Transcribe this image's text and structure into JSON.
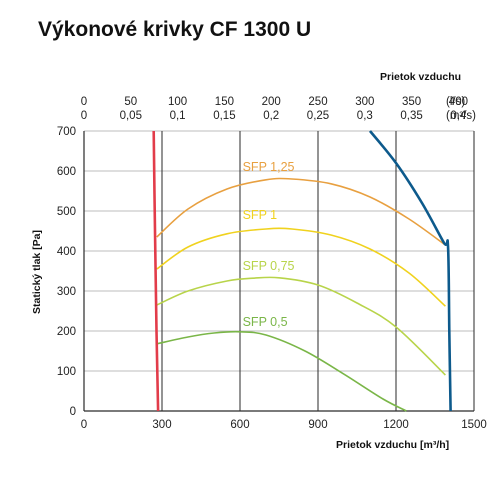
{
  "title": "Výkonové krivky CF 1300 U",
  "chart_data": {
    "type": "line",
    "title": "Výkonové krivky CF 1300 U",
    "xlabel": "Prietok vzduchu [m³/h]",
    "ylabel": "Statický tlak [Pa]",
    "x2label": "Prietok vzduchu",
    "xlim": [
      0,
      1500
    ],
    "ylim": [
      0,
      700
    ],
    "x_ticks": [
      "0",
      "300",
      "600",
      "900",
      "1200",
      "1500"
    ],
    "y_ticks": [
      "0",
      "100",
      "200",
      "300",
      "400",
      "500",
      "600",
      "700"
    ],
    "top_ticks_ls": [
      "0",
      "50",
      "100",
      "150",
      "200",
      "250",
      "300",
      "350",
      "400"
    ],
    "top_ticks_m3s": [
      "0",
      "0,05",
      "0,1",
      "0,15",
      "0,2",
      "0,25",
      "0,3",
      "0,35",
      "0,4"
    ],
    "top_unit_ls": "(l/s)",
    "top_unit_m3s": "(m³/s)",
    "grid": true,
    "series": [
      {
        "name": "SFP 1,25",
        "color": "#e8a040",
        "x": [
          280,
          400,
          550,
          700,
          800,
          950,
          1100,
          1250,
          1390
        ],
        "y": [
          435,
          505,
          555,
          578,
          580,
          568,
          535,
          480,
          415
        ]
      },
      {
        "name": "SFP 1",
        "color": "#f0d21e",
        "x": [
          280,
          400,
          550,
          700,
          800,
          950,
          1100,
          1250,
          1390
        ],
        "y": [
          355,
          410,
          443,
          455,
          455,
          440,
          405,
          345,
          262
        ]
      },
      {
        "name": "SFP 0,75",
        "color": "#b8d44a",
        "x": [
          280,
          400,
          550,
          650,
          750,
          900,
          1050,
          1200,
          1390
        ],
        "y": [
          265,
          300,
          325,
          332,
          333,
          315,
          270,
          210,
          90
        ]
      },
      {
        "name": "SFP 0,5",
        "color": "#7ab648",
        "x": [
          280,
          400,
          500,
          600,
          700,
          850,
          1000,
          1150,
          1240
        ],
        "y": [
          168,
          185,
          195,
          198,
          190,
          150,
          92,
          30,
          0
        ]
      },
      {
        "name": "",
        "color": "#0d5a8c",
        "x": [
          1100,
          1200,
          1300,
          1385,
          1400,
          1405,
          1410
        ],
        "y": [
          700,
          620,
          520,
          420,
          412,
          200,
          0
        ]
      },
      {
        "name": "",
        "color": "#e23c4a",
        "x": [
          268,
          273,
          279,
          285
        ],
        "y": [
          700,
          450,
          200,
          0
        ]
      }
    ],
    "labels": [
      {
        "text": "SFP 1,25",
        "x": 610,
        "y": 600,
        "color": "#e8a040"
      },
      {
        "text": "SFP 1",
        "x": 610,
        "y": 480,
        "color": "#f0d21e"
      },
      {
        "text": "SFP 0,75",
        "x": 610,
        "y": 352,
        "color": "#b8d44a"
      },
      {
        "text": "SFP 0,5",
        "x": 610,
        "y": 212,
        "color": "#7ab648"
      }
    ]
  }
}
